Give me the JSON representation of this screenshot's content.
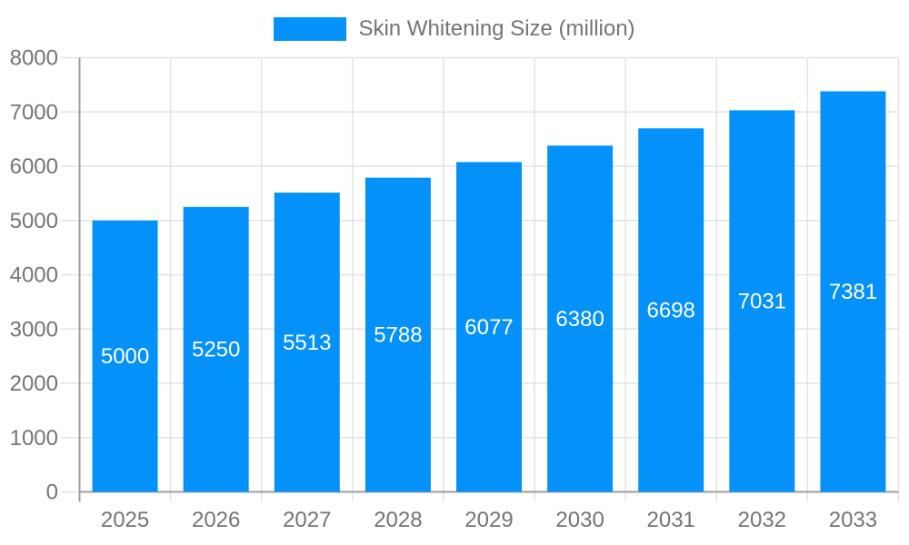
{
  "chart_data": {
    "type": "bar",
    "title": "",
    "legend": "Skin Whitening Size (million)",
    "legend_position": "top",
    "categories": [
      "2025",
      "2026",
      "2027",
      "2028",
      "2029",
      "2030",
      "2031",
      "2032",
      "2033"
    ],
    "series": [
      {
        "name": "Skin Whitening Size (million)",
        "values": [
          5000,
          5250,
          5513,
          5788,
          6077,
          6380,
          6698,
          7031,
          7381
        ]
      }
    ],
    "xlabel": "",
    "ylabel": "",
    "ylim": [
      0,
      8000
    ],
    "yticks": [
      0,
      1000,
      2000,
      3000,
      4000,
      5000,
      6000,
      7000,
      8000
    ],
    "grid": true,
    "bar_labels_inside": true,
    "colors": {
      "bar": "#0591fa",
      "bar_label_text": "#ffffff",
      "axis_text": "#757575",
      "grid_line": "#e3e3e3",
      "axis_line": "#9e9e9e"
    }
  }
}
